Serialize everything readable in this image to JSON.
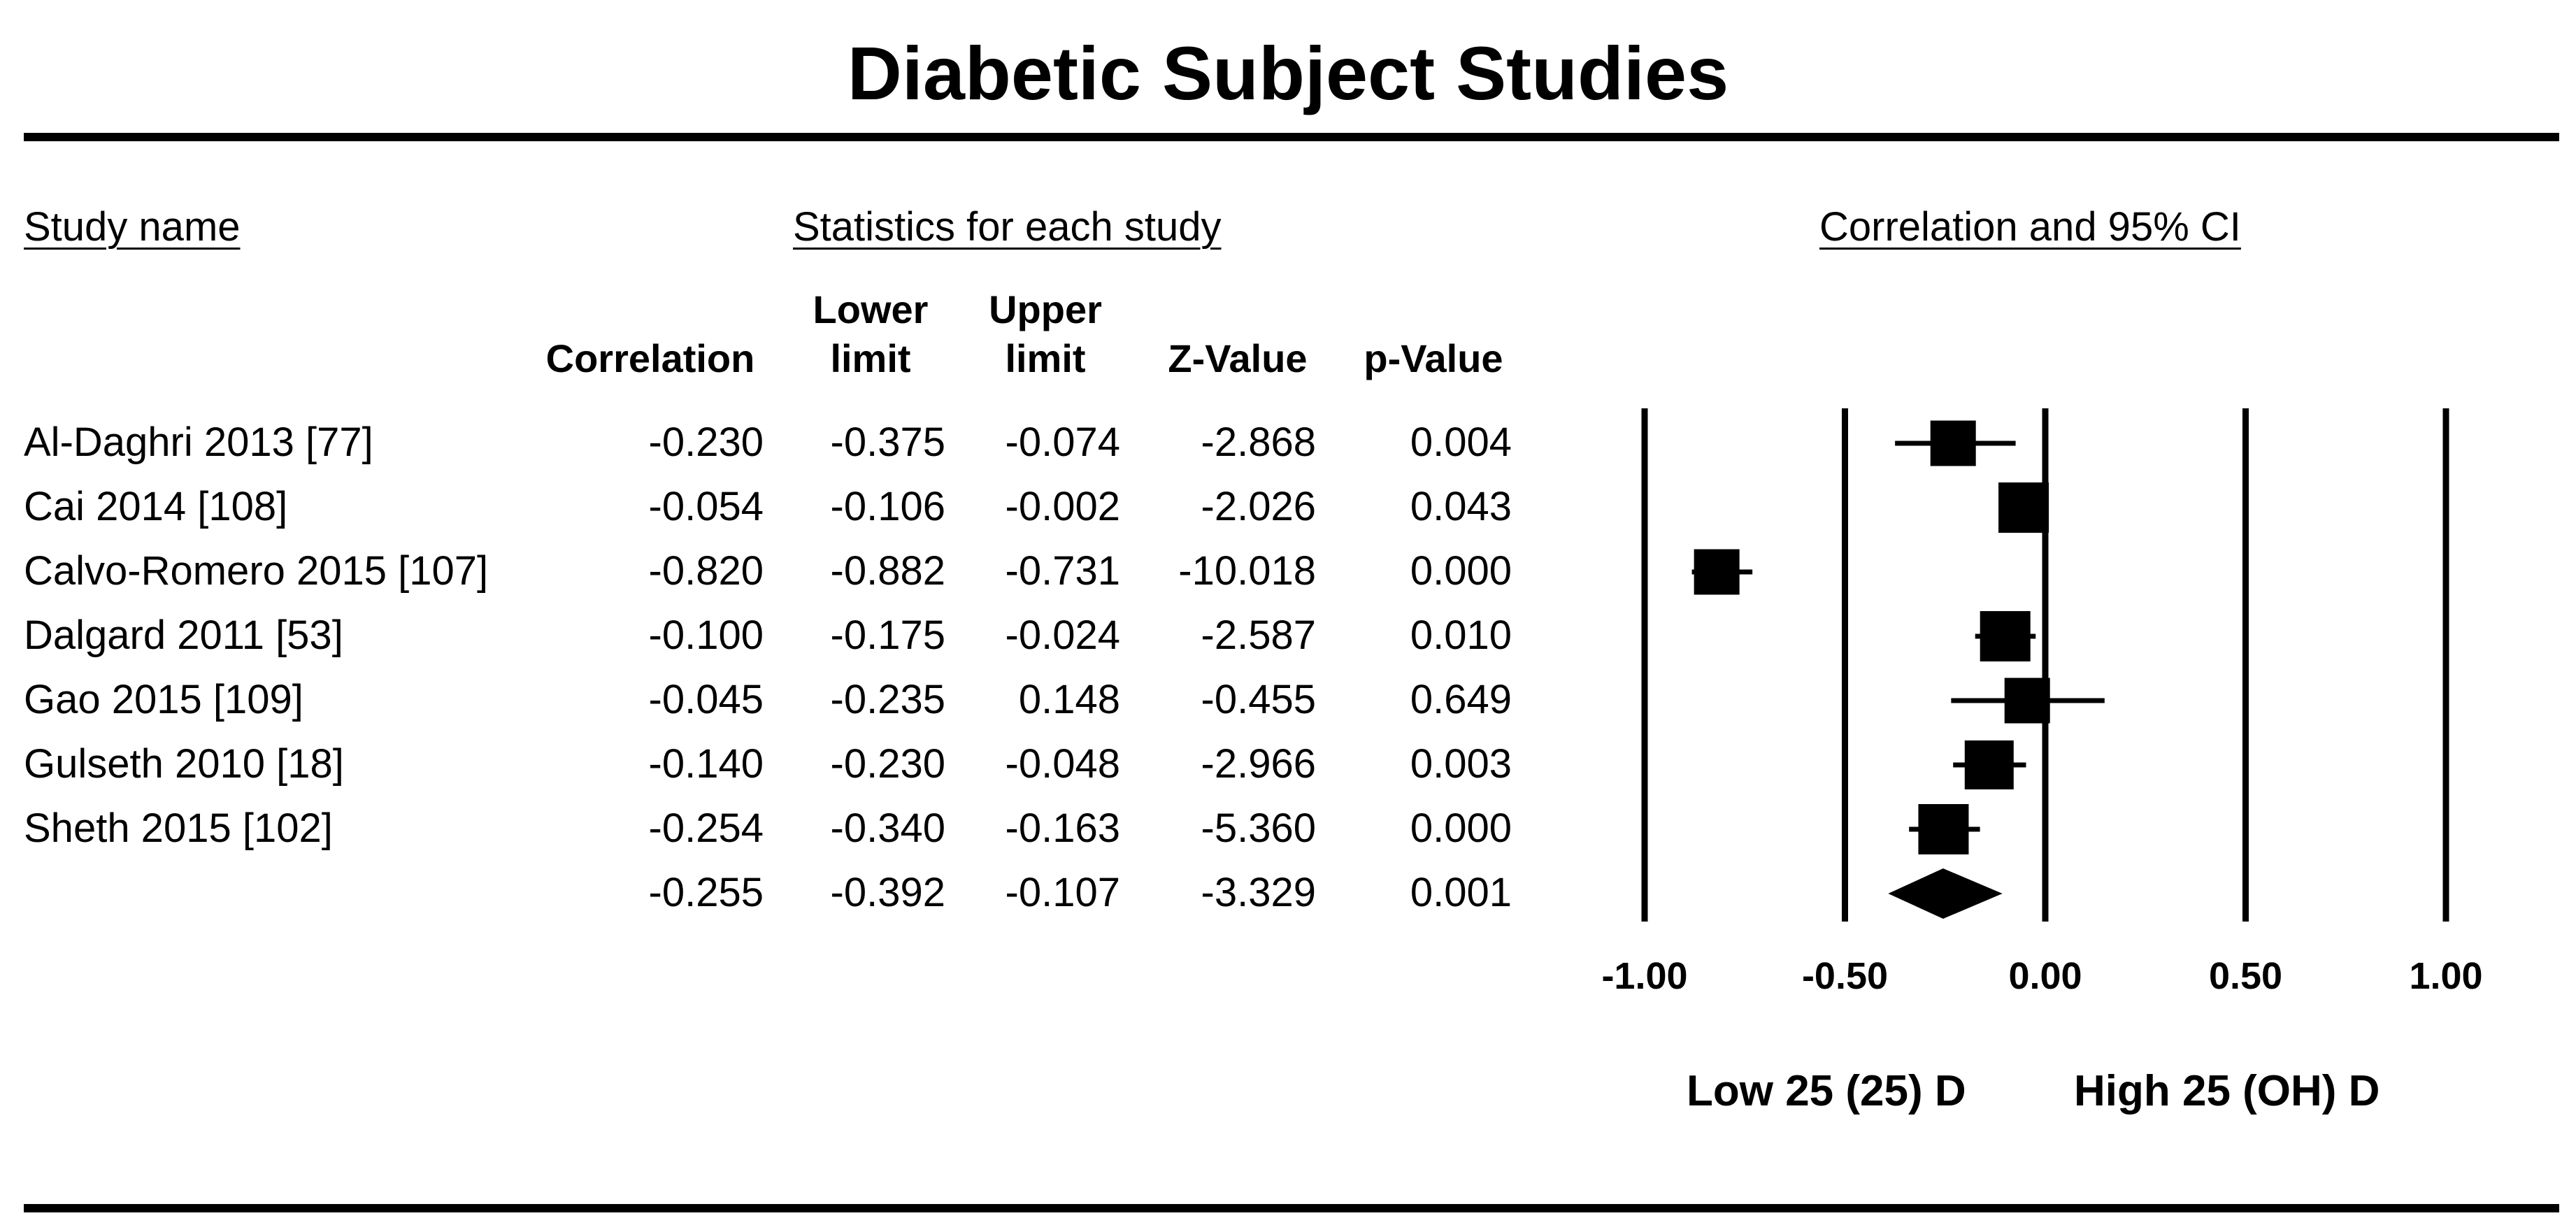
{
  "title": "Diabetic Subject Studies",
  "headers": {
    "study_name": "Study name",
    "statistics": "Statistics for each study",
    "ci": "Correlation and 95% CI"
  },
  "columns": {
    "correlation": "Correlation",
    "lower_1": "Lower",
    "lower_2": "limit",
    "upper_1": "Upper",
    "upper_2": "limit",
    "z": "Z-Value",
    "p": "p-Value"
  },
  "rows": [
    {
      "name": "Al-Daghri 2013 [77]",
      "corr": "-0.230",
      "lower": "-0.375",
      "upper": "-0.074",
      "z": "-2.868",
      "p": "0.004"
    },
    {
      "name": "Cai 2014 [108]",
      "corr": "-0.054",
      "lower": "-0.106",
      "upper": "-0.002",
      "z": "-2.026",
      "p": "0.043"
    },
    {
      "name": "Calvo-Romero 2015 [107]",
      "corr": "-0.820",
      "lower": "-0.882",
      "upper": "-0.731",
      "z": "-10.018",
      "p": "0.000"
    },
    {
      "name": "Dalgard 2011 [53]",
      "corr": "-0.100",
      "lower": "-0.175",
      "upper": "-0.024",
      "z": "-2.587",
      "p": "0.010"
    },
    {
      "name": "Gao 2015 [109]",
      "corr": "-0.045",
      "lower": "-0.235",
      "upper": "0.148",
      "z": "-0.455",
      "p": "0.649"
    },
    {
      "name": "Gulseth 2010 [18]",
      "corr": "-0.140",
      "lower": "-0.230",
      "upper": "-0.048",
      "z": "-2.966",
      "p": "0.003"
    },
    {
      "name": "Sheth 2015 [102]",
      "corr": "-0.254",
      "lower": "-0.340",
      "upper": "-0.163",
      "z": "-5.360",
      "p": "0.000"
    },
    {
      "name": "",
      "corr": "-0.255",
      "lower": "-0.392",
      "upper": "-0.107",
      "z": "-3.329",
      "p": "0.001"
    }
  ],
  "axis_labels": {
    "left": "Low 25 (25) D",
    "right": "High 25 (OH) D"
  },
  "chart_data": {
    "type": "forest",
    "title": "Diabetic Subject Studies",
    "xlabel": "Correlation and 95% CI",
    "xlim": [
      -1.0,
      1.0
    ],
    "xticks": [
      -1.0,
      -0.5,
      0.0,
      0.5,
      1.0
    ],
    "xtick_labels": [
      "-1.00",
      "-0.50",
      "0.00",
      "0.50",
      "1.00"
    ],
    "studies": [
      {
        "name": "Al-Daghri 2013 [77]",
        "value": -0.23,
        "lower": -0.375,
        "upper": -0.074,
        "weight": 0.55
      },
      {
        "name": "Cai 2014 [108]",
        "value": -0.054,
        "lower": -0.106,
        "upper": -0.002,
        "weight": 0.62
      },
      {
        "name": "Calvo-Romero 2015 [107]",
        "value": -0.82,
        "lower": -0.882,
        "upper": -0.731,
        "weight": 0.55
      },
      {
        "name": "Dalgard 2011 [53]",
        "value": -0.1,
        "lower": -0.175,
        "upper": -0.024,
        "weight": 0.62
      },
      {
        "name": "Gao 2015 [109]",
        "value": -0.045,
        "lower": -0.235,
        "upper": 0.148,
        "weight": 0.55
      },
      {
        "name": "Gulseth 2010 [18]",
        "value": -0.14,
        "lower": -0.23,
        "upper": -0.048,
        "weight": 0.6
      },
      {
        "name": "Sheth 2015 [102]",
        "value": -0.254,
        "lower": -0.34,
        "upper": -0.163,
        "weight": 0.62
      }
    ],
    "summary": {
      "value": -0.255,
      "lower": -0.392,
      "upper": -0.107
    },
    "direction_labels": [
      "Low 25 (25) D",
      "High 25 (OH) D"
    ]
  }
}
